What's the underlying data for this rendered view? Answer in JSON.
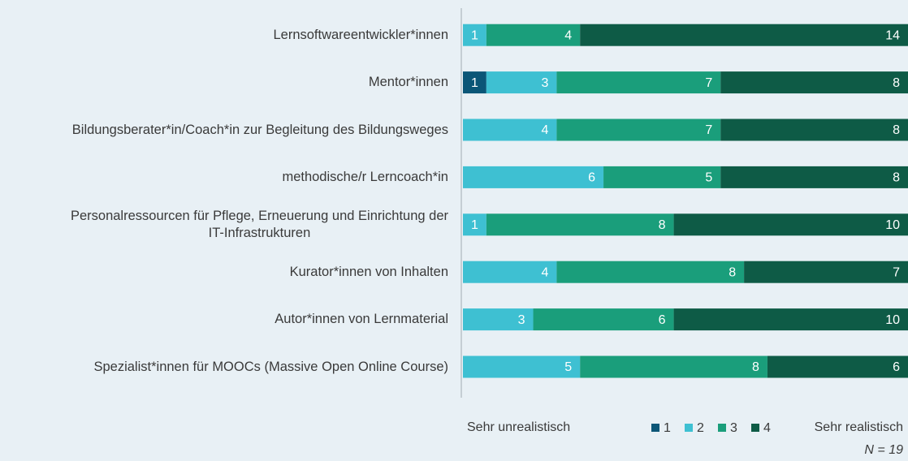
{
  "chart_data": {
    "type": "stacked_bar_horizontal",
    "categories": [
      "Lernsoftwareentwickler*innen",
      "Mentor*innen",
      "Bildungsberater*in/Coach*in zur Begleitung des Bildungsweges",
      "methodische/r Lerncoach*in",
      "Personalressourcen für Pflege, Erneuerung und Einrichtung der\nIT-Infrastrukturen",
      "Kurator*innen von Inhalten",
      "Autor*innen von Lernmaterial",
      "Spezialist*innen für MOOCs (Massive Open Online Course)"
    ],
    "series": [
      {
        "name": "1",
        "color": "#0b5677",
        "values": [
          0,
          1,
          0,
          0,
          0,
          0,
          0,
          0
        ]
      },
      {
        "name": "2",
        "color": "#3ec0d2",
        "values": [
          1,
          3,
          4,
          6,
          1,
          4,
          3,
          5
        ]
      },
      {
        "name": "3",
        "color": "#1a9e7b",
        "values": [
          4,
          7,
          7,
          5,
          8,
          8,
          6,
          8
        ]
      },
      {
        "name": "4",
        "color": "#0e5b46",
        "values": [
          14,
          8,
          8,
          8,
          10,
          7,
          10,
          6
        ]
      }
    ],
    "xlim": [
      0,
      19
    ],
    "left_label": "Sehr unrealistisch",
    "right_label": "Sehr realistisch",
    "note": "N = 19"
  }
}
